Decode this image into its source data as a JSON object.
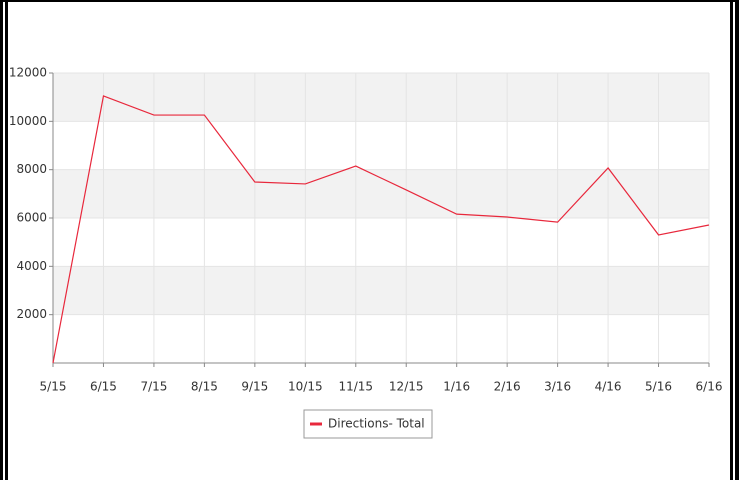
{
  "chart_data": {
    "type": "line",
    "categories": [
      "5/15",
      "6/15",
      "7/15",
      "8/15",
      "9/15",
      "10/15",
      "11/15",
      "12/15",
      "1/16",
      "2/16",
      "3/16",
      "4/16",
      "5/16",
      "6/16"
    ],
    "series": [
      {
        "name": "Directions- Total",
        "color": "#e8283c",
        "values": [
          0,
          11050,
          10260,
          10260,
          7490,
          7410,
          8150,
          7160,
          6160,
          6040,
          5830,
          8070,
          5300,
          5710
        ]
      }
    ],
    "ylim": [
      0,
      12000
    ],
    "yticks": [
      2000,
      4000,
      6000,
      8000,
      10000,
      12000
    ],
    "grid": true,
    "legend": "bottom"
  }
}
